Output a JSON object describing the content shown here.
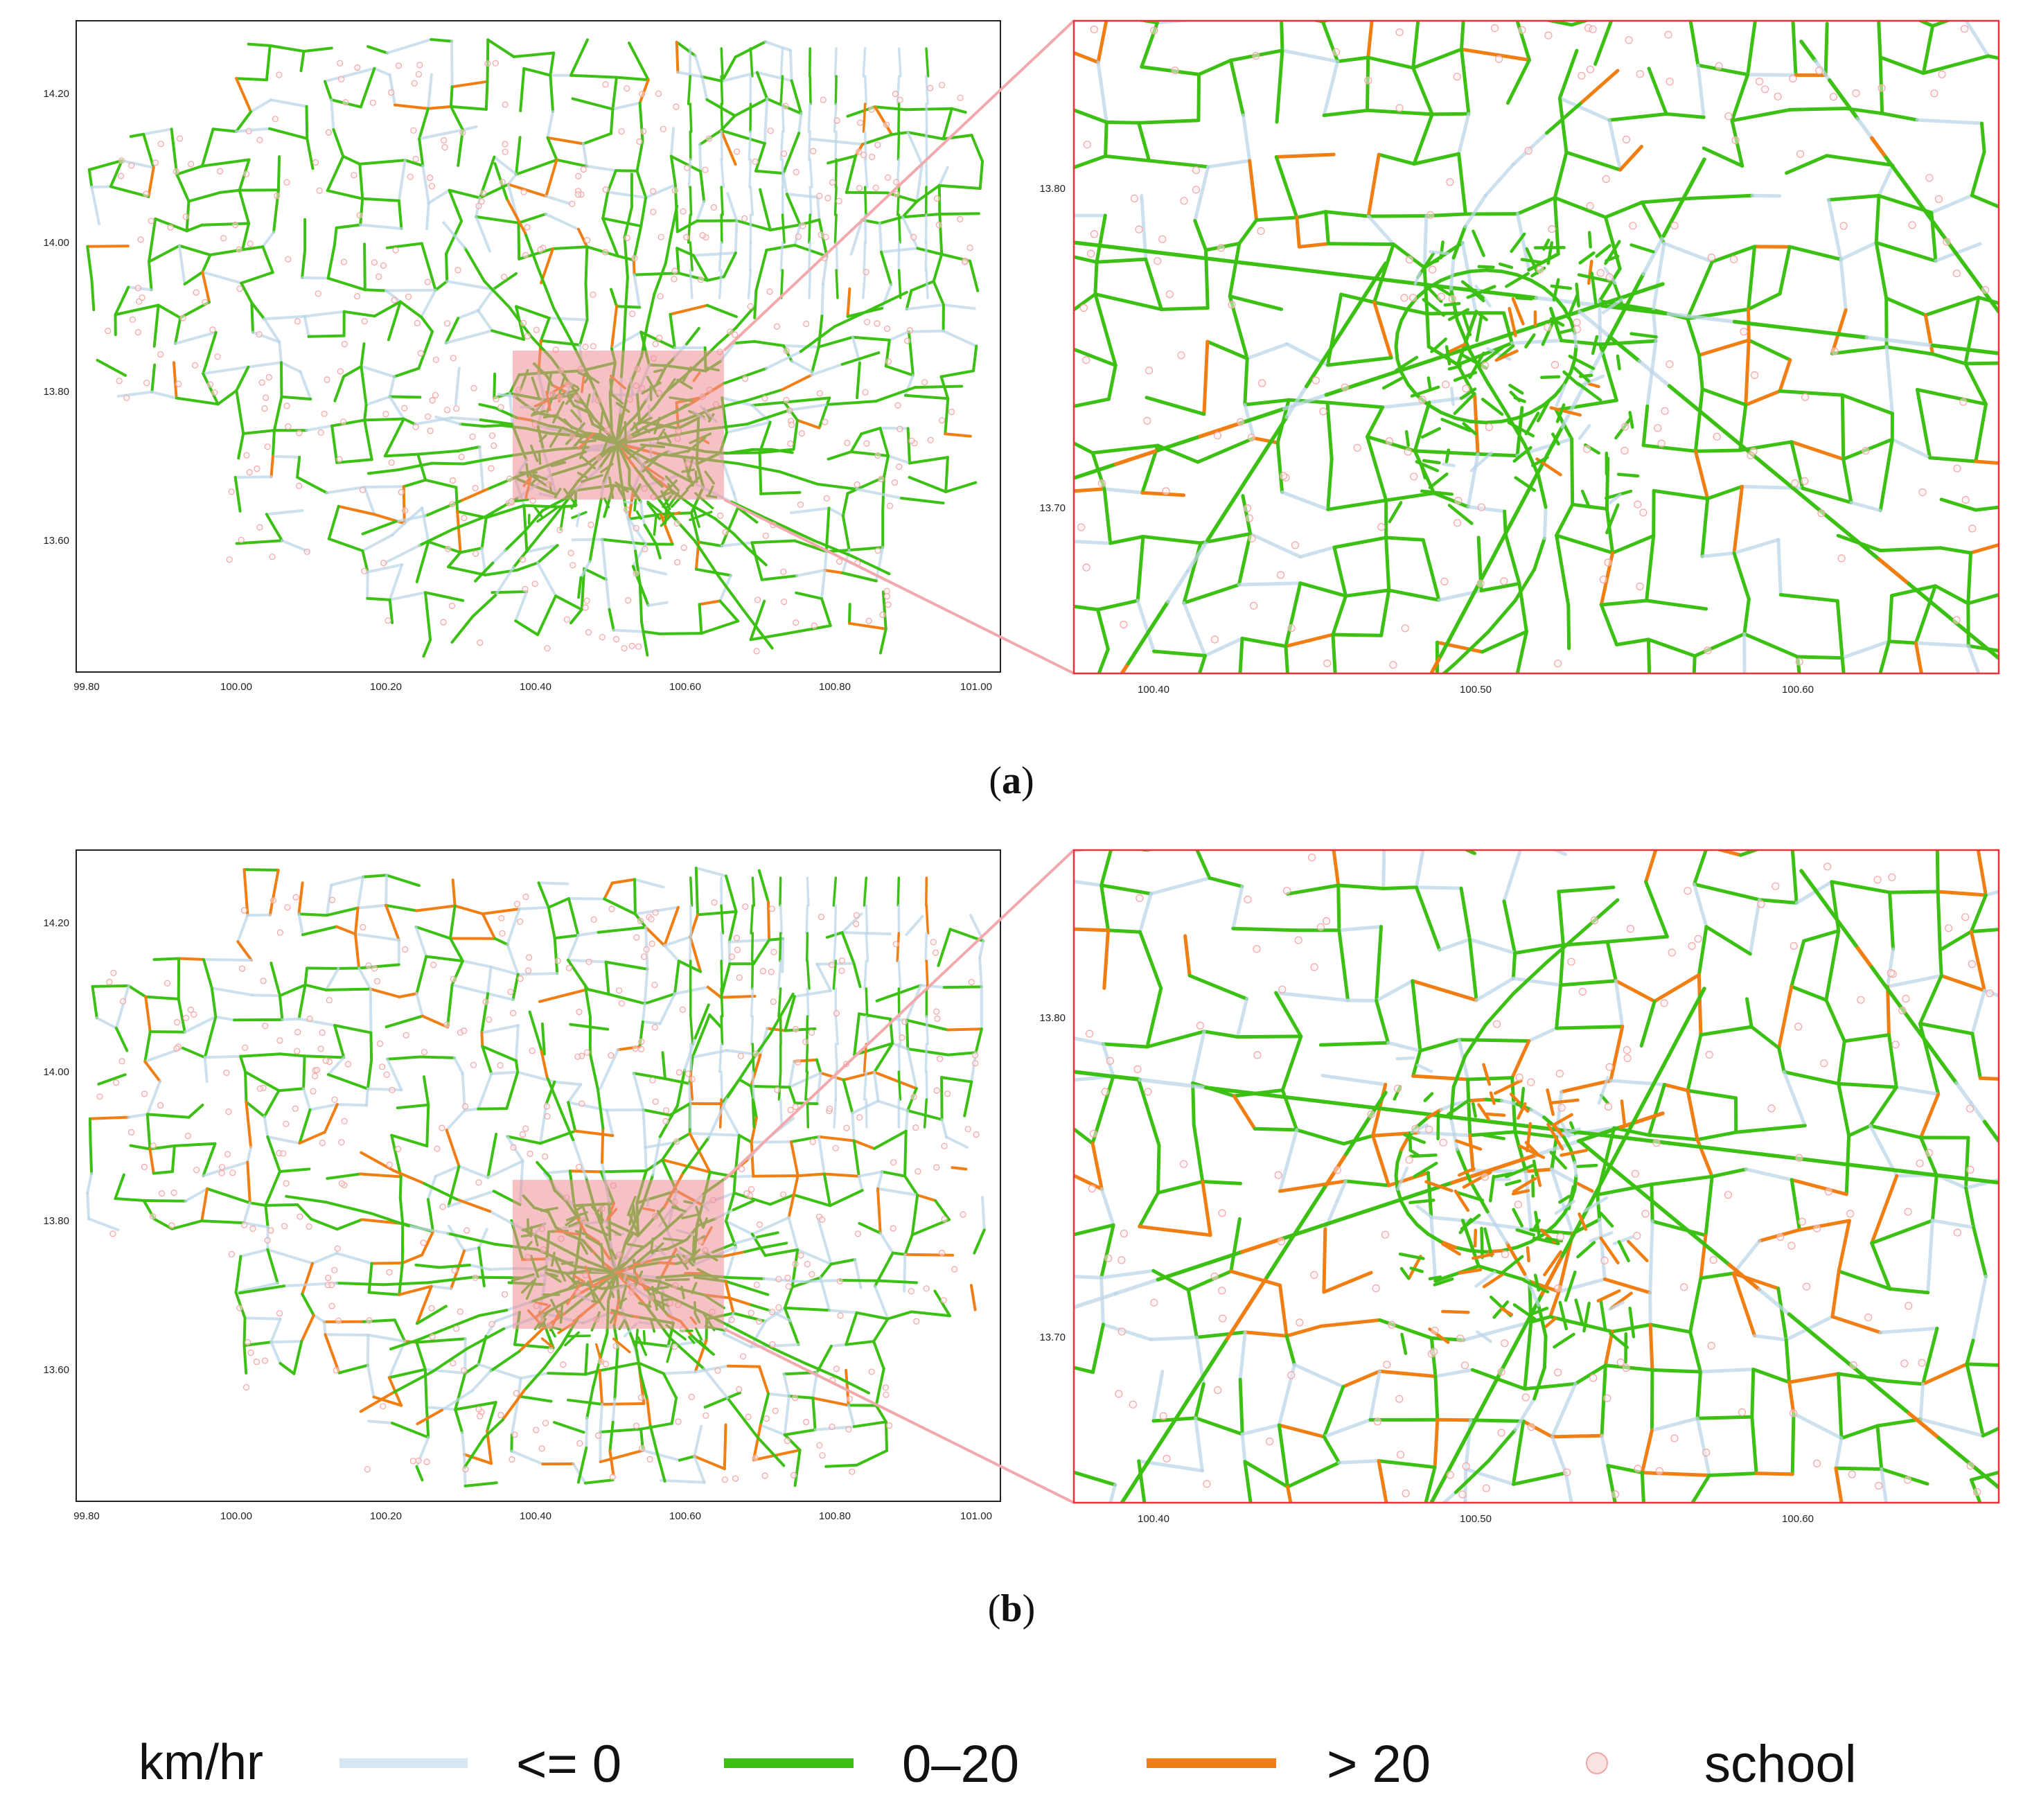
{
  "colors": {
    "none": "#bcd6e8",
    "low": "#3cc014",
    "high": "#f07e12",
    "school": "#f2a6a6",
    "highlight": "#ef8e95",
    "frame": "#e8323c",
    "axis": "#222222"
  },
  "panels": [
    {
      "label_open": "(",
      "label_letter": "a",
      "label_close": ")",
      "overview": {
        "x_ticks": [
          "99.80",
          "100.00",
          "100.20",
          "100.40",
          "100.60",
          "100.80",
          "101.00"
        ],
        "y_ticks": [
          "14.20",
          "14.00",
          "13.80",
          "13.60"
        ]
      },
      "zoom": {
        "x_ticks": [
          "100.40",
          "100.50",
          "100.60"
        ],
        "y_ticks": [
          "13.80",
          "13.70"
        ]
      }
    },
    {
      "label_open": "(",
      "label_letter": "b",
      "label_close": ")",
      "overview": {
        "x_ticks": [
          "99.80",
          "100.00",
          "100.20",
          "100.40",
          "100.60",
          "100.80",
          "101.00"
        ],
        "y_ticks": [
          "14.20",
          "14.00",
          "13.80",
          "13.60"
        ]
      },
      "zoom": {
        "x_ticks": [
          "100.40",
          "100.50",
          "100.60"
        ],
        "y_ticks": [
          "13.80",
          "13.70"
        ]
      }
    }
  ],
  "legend": {
    "unit": "km/hr",
    "items": [
      {
        "label": "<= 0",
        "color": "#bcd6e8"
      },
      {
        "label": "0–20",
        "color": "#3cc014"
      },
      {
        "label": "> 20",
        "color": "#f07e12"
      }
    ],
    "school_label": "school"
  }
}
